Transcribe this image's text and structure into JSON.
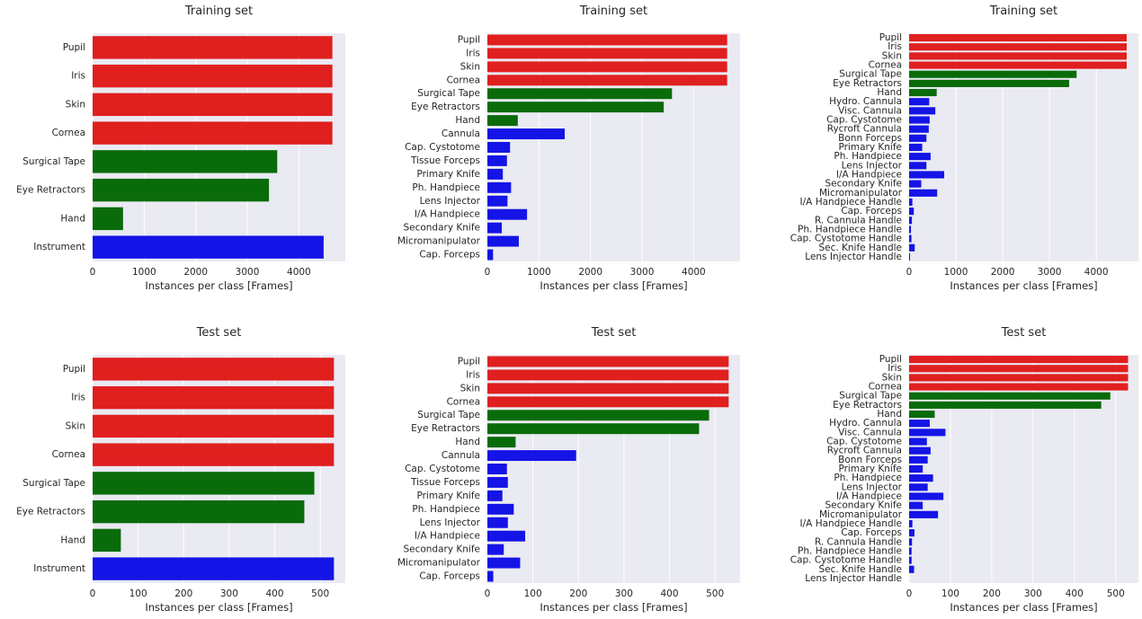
{
  "colors": {
    "human": "#e01f1f",
    "tape": "#0a6b0a",
    "instrument": "#1414e6",
    "plot_bg": "#eaeaf2",
    "grid": "#ffffff"
  },
  "chart_data": [
    {
      "type": "bar",
      "orientation": "horizontal",
      "title": "Training set",
      "xlabel": "Instances per class [Frames]",
      "xlim": [
        0,
        4900
      ],
      "xticks": [
        0,
        1000,
        2000,
        3000,
        4000
      ],
      "categories": [
        "Pupil",
        "Iris",
        "Skin",
        "Cornea",
        "Surgical Tape",
        "Eye Retractors",
        "Hand",
        "Instrument"
      ],
      "values": [
        4650,
        4650,
        4650,
        4650,
        3580,
        3420,
        590,
        4480
      ],
      "groups": [
        "human",
        "human",
        "human",
        "human",
        "tape",
        "tape",
        "tape",
        "instrument"
      ]
    },
    {
      "type": "bar",
      "orientation": "horizontal",
      "title": "Training set",
      "xlabel": "Instances per class [Frames]",
      "xlim": [
        0,
        4900
      ],
      "xticks": [
        0,
        1000,
        2000,
        3000,
        4000
      ],
      "categories": [
        "Pupil",
        "Iris",
        "Skin",
        "Cornea",
        "Surgical Tape",
        "Eye Retractors",
        "Hand",
        "Cannula",
        "Cap. Cystotome",
        "Tissue Forceps",
        "Primary Knife",
        "Ph. Handpiece",
        "Lens Injector",
        "I/A Handpiece",
        "Secondary Knife",
        "Micromanipulator",
        "Cap. Forceps"
      ],
      "values": [
        4650,
        4650,
        4650,
        4650,
        3580,
        3420,
        590,
        1500,
        440,
        380,
        300,
        460,
        390,
        770,
        280,
        610,
        110
      ],
      "groups": [
        "human",
        "human",
        "human",
        "human",
        "tape",
        "tape",
        "tape",
        "instrument",
        "instrument",
        "instrument",
        "instrument",
        "instrument",
        "instrument",
        "instrument",
        "instrument",
        "instrument",
        "instrument"
      ]
    },
    {
      "type": "bar",
      "orientation": "horizontal",
      "title": "Training set",
      "xlabel": "Instances per class [Frames]",
      "xlim": [
        0,
        4900
      ],
      "xticks": [
        0,
        1000,
        2000,
        3000,
        4000
      ],
      "categories": [
        "Pupil",
        "Iris",
        "Skin",
        "Cornea",
        "Surgical Tape",
        "Eye Retractors",
        "Hand",
        "Hydro. Cannula",
        "Visc. Cannula",
        "Cap. Cystotome",
        "Rycroft Cannula",
        "Bonn Forceps",
        "Primary Knife",
        "Ph. Handpiece",
        "Lens Injector",
        "I/A Handpiece",
        "Secondary Knife",
        "Micromanipulator",
        "I/A Handpiece Handle",
        "Cap. Forceps",
        "R. Cannula Handle",
        "Ph. Handpiece Handle",
        "Cap. Cystotome Handle",
        "Sec. Knife Handle",
        "Lens Injector Handle"
      ],
      "values": [
        4650,
        4650,
        4650,
        4650,
        3580,
        3420,
        590,
        430,
        560,
        440,
        420,
        370,
        280,
        460,
        370,
        750,
        260,
        600,
        70,
        100,
        60,
        40,
        50,
        120,
        20
      ],
      "groups": [
        "human",
        "human",
        "human",
        "human",
        "tape",
        "tape",
        "tape",
        "instrument",
        "instrument",
        "instrument",
        "instrument",
        "instrument",
        "instrument",
        "instrument",
        "instrument",
        "instrument",
        "instrument",
        "instrument",
        "instrument",
        "instrument",
        "instrument",
        "instrument",
        "instrument",
        "instrument",
        "instrument"
      ]
    },
    {
      "type": "bar",
      "orientation": "horizontal",
      "title": "Test set",
      "xlabel": "Instances per class [Frames]",
      "xlim": [
        0,
        555
      ],
      "xticks": [
        0,
        100,
        200,
        300,
        400,
        500
      ],
      "categories": [
        "Pupil",
        "Iris",
        "Skin",
        "Cornea",
        "Surgical Tape",
        "Eye Retractors",
        "Hand",
        "Instrument"
      ],
      "values": [
        530,
        530,
        530,
        530,
        487,
        465,
        62,
        530
      ],
      "groups": [
        "human",
        "human",
        "human",
        "human",
        "tape",
        "tape",
        "tape",
        "instrument"
      ]
    },
    {
      "type": "bar",
      "orientation": "horizontal",
      "title": "Test set",
      "xlabel": "Instances per class [Frames]",
      "xlim": [
        0,
        555
      ],
      "xticks": [
        0,
        100,
        200,
        300,
        400,
        500
      ],
      "categories": [
        "Pupil",
        "Iris",
        "Skin",
        "Cornea",
        "Surgical Tape",
        "Eye Retractors",
        "Hand",
        "Cannula",
        "Cap. Cystotome",
        "Tissue Forceps",
        "Primary Knife",
        "Ph. Handpiece",
        "Lens Injector",
        "I/A Handpiece",
        "Secondary Knife",
        "Micromanipulator",
        "Cap. Forceps"
      ],
      "values": [
        530,
        530,
        530,
        530,
        487,
        465,
        62,
        195,
        43,
        45,
        33,
        58,
        45,
        83,
        36,
        72,
        13
      ],
      "groups": [
        "human",
        "human",
        "human",
        "human",
        "tape",
        "tape",
        "tape",
        "instrument",
        "instrument",
        "instrument",
        "instrument",
        "instrument",
        "instrument",
        "instrument",
        "instrument",
        "instrument",
        "instrument"
      ]
    },
    {
      "type": "bar",
      "orientation": "horizontal",
      "title": "Test set",
      "xlabel": "Instances per class [Frames]",
      "xlim": [
        0,
        555
      ],
      "xticks": [
        0,
        100,
        200,
        300,
        400,
        500
      ],
      "categories": [
        "Pupil",
        "Iris",
        "Skin",
        "Cornea",
        "Surgical Tape",
        "Eye Retractors",
        "Hand",
        "Hydro. Cannula",
        "Visc. Cannula",
        "Cap. Cystotome",
        "Rycroft Cannula",
        "Bonn Forceps",
        "Primary Knife",
        "Ph. Handpiece",
        "Lens Injector",
        "I/A Handpiece",
        "Secondary Knife",
        "Micromanipulator",
        "I/A Handpiece Handle",
        "Cap. Forceps",
        "R. Cannula Handle",
        "Ph. Handpiece Handle",
        "Cap. Cystotome Handle",
        "Sec. Knife Handle",
        "Lens Injector Handle"
      ],
      "values": [
        530,
        530,
        530,
        530,
        487,
        465,
        62,
        50,
        88,
        43,
        52,
        45,
        33,
        58,
        45,
        83,
        33,
        70,
        8,
        13,
        7,
        6,
        6,
        12,
        0
      ],
      "groups": [
        "human",
        "human",
        "human",
        "human",
        "tape",
        "tape",
        "tape",
        "instrument",
        "instrument",
        "instrument",
        "instrument",
        "instrument",
        "instrument",
        "instrument",
        "instrument",
        "instrument",
        "instrument",
        "instrument",
        "instrument",
        "instrument",
        "instrument",
        "instrument",
        "instrument",
        "instrument",
        "instrument"
      ]
    }
  ]
}
